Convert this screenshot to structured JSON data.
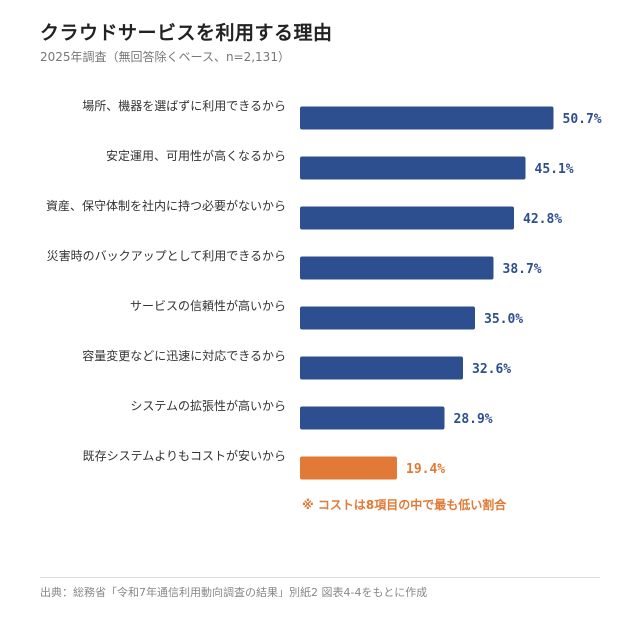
{
  "chart_data": {
    "type": "bar",
    "orientation": "horizontal",
    "title": "クラウドサービスを利用する理由",
    "subtitle": "2025年調査（無回答除くベース、n=2,131）",
    "categories": [
      "場所、機器を選ばずに利用できるから",
      "安定運用、可用性が高くなるから",
      "資産、保守体制を社内に持つ必要がないから",
      "災害時のバックアップとして利用できるから",
      "サービスの信頼性が高いから",
      "容量変更などに迅速に対応できるから",
      "システムの拡張性が高いから",
      "既存システムよりもコストが安いから"
    ],
    "values": [
      50.7,
      45.1,
      42.8,
      38.7,
      35.0,
      32.6,
      28.9,
      19.4
    ],
    "value_labels": [
      "50.7%",
      "45.1%",
      "42.8%",
      "38.7%",
      "35.0%",
      "32.6%",
      "28.9%",
      "19.4%"
    ],
    "xlim": [
      0,
      60
    ],
    "grid": false,
    "highlight_index": 7,
    "annotation": "※ コストは8項目の中で最も低い割合",
    "colors": {
      "bar": "#2e4f8f",
      "highlight": "#e07a36",
      "label_text": "#2e4f8f",
      "highlight_text": "#e07a36"
    }
  },
  "footer": {
    "source": "出典：総務省「令和7年通信利用動向調査の結果」別紙2 図表4-4をもとに作成"
  }
}
